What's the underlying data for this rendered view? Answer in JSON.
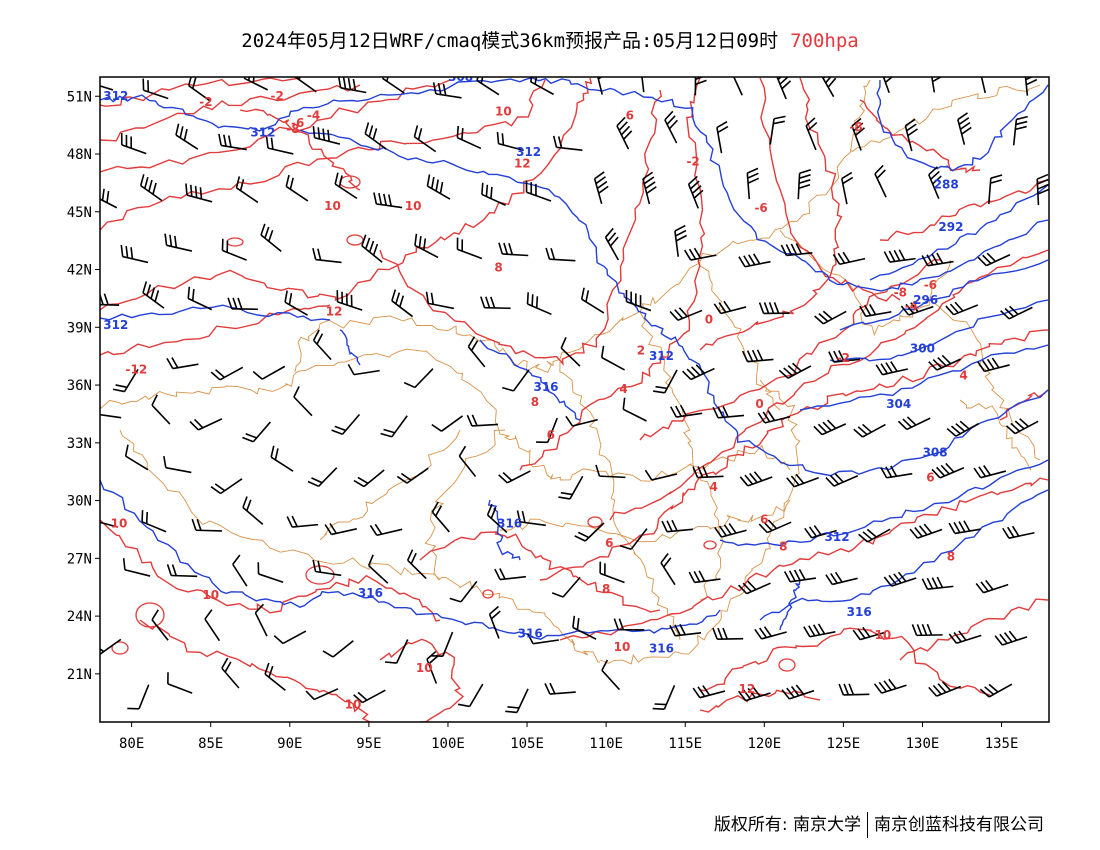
{
  "header": {
    "title": "2024年05月12日WRF/cmaq模式36km预报产品:05月12日09时",
    "level": "700hpa"
  },
  "footer": {
    "copyright": "版权所有: 南京大学",
    "company": "南京创蓝科技有限公司"
  },
  "map": {
    "lon_range": [
      78,
      138
    ],
    "lat_range": [
      18.5,
      52
    ],
    "x_ticks": [
      {
        "lon": 80,
        "label": "80E"
      },
      {
        "lon": 85,
        "label": "85E"
      },
      {
        "lon": 90,
        "label": "90E"
      },
      {
        "lon": 95,
        "label": "95E"
      },
      {
        "lon": 100,
        "label": "100E"
      },
      {
        "lon": 105,
        "label": "105E"
      },
      {
        "lon": 110,
        "label": "110E"
      },
      {
        "lon": 115,
        "label": "115E"
      },
      {
        "lon": 120,
        "label": "120E"
      },
      {
        "lon": 125,
        "label": "125E"
      },
      {
        "lon": 130,
        "label": "130E"
      },
      {
        "lon": 135,
        "label": "135E"
      }
    ],
    "y_ticks": [
      {
        "lat": 51,
        "label": "51N"
      },
      {
        "lat": 48,
        "label": "48N"
      },
      {
        "lat": 45,
        "label": "45N"
      },
      {
        "lat": 42,
        "label": "42N"
      },
      {
        "lat": 39,
        "label": "39N"
      },
      {
        "lat": 36,
        "label": "36N"
      },
      {
        "lat": 33,
        "label": "33N"
      },
      {
        "lat": 30,
        "label": "30N"
      },
      {
        "lat": 27,
        "label": "27N"
      },
      {
        "lat": 24,
        "label": "24N"
      },
      {
        "lat": 21,
        "label": "21N"
      }
    ],
    "colors": {
      "temperature": "#e23b3b",
      "height": "#2440d8",
      "boundary": "#d9934a",
      "wind": "#000000",
      "frame": "#000000"
    },
    "temperature_labels": [
      {
        "lon": 84.7,
        "lat": 50.5,
        "text": "-2"
      },
      {
        "lon": 89.2,
        "lat": 50.8,
        "text": "-2"
      },
      {
        "lon": 90.5,
        "lat": 49.4,
        "text": "-6"
      },
      {
        "lon": 90.2,
        "lat": 49.1,
        "text": "-8"
      },
      {
        "lon": 91.5,
        "lat": 49.8,
        "text": "-4"
      },
      {
        "lon": 103.5,
        "lat": 50.0,
        "text": "10"
      },
      {
        "lon": 111.5,
        "lat": 49.8,
        "text": "6"
      },
      {
        "lon": 104.7,
        "lat": 47.3,
        "text": "12"
      },
      {
        "lon": 92.7,
        "lat": 45.1,
        "text": "10"
      },
      {
        "lon": 97.8,
        "lat": 45.1,
        "text": "10"
      },
      {
        "lon": 103.2,
        "lat": 41.9,
        "text": "8"
      },
      {
        "lon": 92.8,
        "lat": 39.6,
        "text": "12"
      },
      {
        "lon": 80.3,
        "lat": 36.6,
        "text": "-12"
      },
      {
        "lon": 115.5,
        "lat": 47.4,
        "text": "-2"
      },
      {
        "lon": 119.8,
        "lat": 45.0,
        "text": "-6"
      },
      {
        "lon": 125.8,
        "lat": 49.2,
        "text": "-8"
      },
      {
        "lon": 128.6,
        "lat": 40.6,
        "text": "-8"
      },
      {
        "lon": 130.5,
        "lat": 41.0,
        "text": "-6"
      },
      {
        "lon": 129.3,
        "lat": 39.9,
        "text": "-4"
      },
      {
        "lon": 125.0,
        "lat": 37.2,
        "text": "-2"
      },
      {
        "lon": 116.5,
        "lat": 39.2,
        "text": "0"
      },
      {
        "lon": 112.2,
        "lat": 37.6,
        "text": "2"
      },
      {
        "lon": 111.1,
        "lat": 35.6,
        "text": "4"
      },
      {
        "lon": 105.5,
        "lat": 34.9,
        "text": "8"
      },
      {
        "lon": 106.5,
        "lat": 33.2,
        "text": "6"
      },
      {
        "lon": 119.7,
        "lat": 34.8,
        "text": "0"
      },
      {
        "lon": 132.6,
        "lat": 36.3,
        "text": "4"
      },
      {
        "lon": 116.8,
        "lat": 30.5,
        "text": "4"
      },
      {
        "lon": 130.5,
        "lat": 31.0,
        "text": "6"
      },
      {
        "lon": 120.0,
        "lat": 28.8,
        "text": "6"
      },
      {
        "lon": 121.2,
        "lat": 27.4,
        "text": "8"
      },
      {
        "lon": 110.2,
        "lat": 27.6,
        "text": "6"
      },
      {
        "lon": 110.0,
        "lat": 25.2,
        "text": "8"
      },
      {
        "lon": 131.8,
        "lat": 26.9,
        "text": "8"
      },
      {
        "lon": 79.2,
        "lat": 28.6,
        "text": "10"
      },
      {
        "lon": 85.0,
        "lat": 24.9,
        "text": "10"
      },
      {
        "lon": 98.5,
        "lat": 21.1,
        "text": "10"
      },
      {
        "lon": 94.0,
        "lat": 19.2,
        "text": "10"
      },
      {
        "lon": 111.0,
        "lat": 22.2,
        "text": "10"
      },
      {
        "lon": 127.5,
        "lat": 22.8,
        "text": "10"
      },
      {
        "lon": 118.9,
        "lat": 20.0,
        "text": "12"
      }
    ],
    "height_labels": [
      {
        "lon": 79.0,
        "lat": 50.8,
        "text": "312"
      },
      {
        "lon": 88.3,
        "lat": 48.9,
        "text": "312"
      },
      {
        "lon": 100.8,
        "lat": 51.8,
        "text": "308"
      },
      {
        "lon": 105.1,
        "lat": 47.9,
        "text": "312"
      },
      {
        "lon": 79.0,
        "lat": 38.9,
        "text": "312"
      },
      {
        "lon": 113.5,
        "lat": 37.3,
        "text": "312"
      },
      {
        "lon": 106.2,
        "lat": 35.7,
        "text": "316"
      },
      {
        "lon": 103.9,
        "lat": 28.6,
        "text": "316"
      },
      {
        "lon": 95.1,
        "lat": 25.0,
        "text": "316"
      },
      {
        "lon": 105.2,
        "lat": 22.9,
        "text": "316"
      },
      {
        "lon": 113.5,
        "lat": 22.1,
        "text": "316"
      },
      {
        "lon": 124.6,
        "lat": 27.9,
        "text": "312"
      },
      {
        "lon": 126.0,
        "lat": 24.0,
        "text": "316"
      },
      {
        "lon": 131.5,
        "lat": 46.2,
        "text": "288"
      },
      {
        "lon": 131.8,
        "lat": 44.0,
        "text": "292"
      },
      {
        "lon": 130.2,
        "lat": 40.2,
        "text": "296"
      },
      {
        "lon": 130.0,
        "lat": 37.7,
        "text": "300"
      },
      {
        "lon": 128.5,
        "lat": 34.8,
        "text": "304"
      },
      {
        "lon": 130.8,
        "lat": 32.3,
        "text": "308"
      }
    ]
  }
}
